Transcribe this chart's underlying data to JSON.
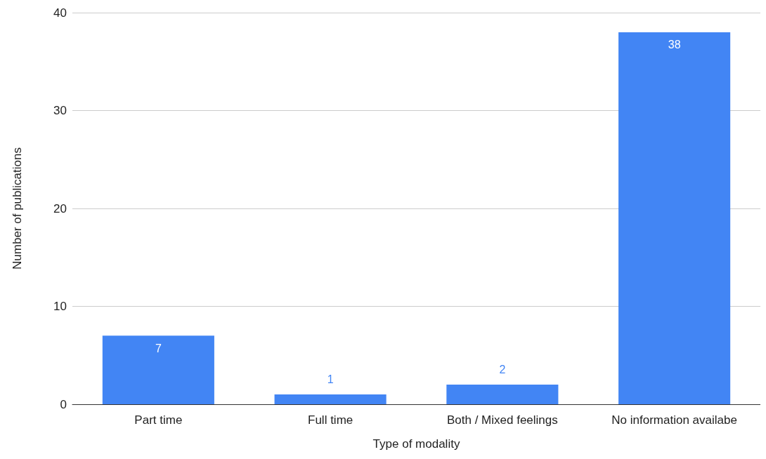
{
  "chart_data": {
    "type": "bar",
    "xlabel": "Type of modality",
    "ylabel": "Number of publications",
    "categories": [
      "Part time",
      "Full time",
      "Both / Mixed feelings",
      "No information availabe"
    ],
    "values": [
      7,
      1,
      2,
      38
    ],
    "color": "#4285f4",
    "ylim": [
      0,
      40
    ],
    "yticks": [
      0,
      10,
      20,
      30,
      40
    ],
    "grid": "y",
    "data_labels": true
  }
}
